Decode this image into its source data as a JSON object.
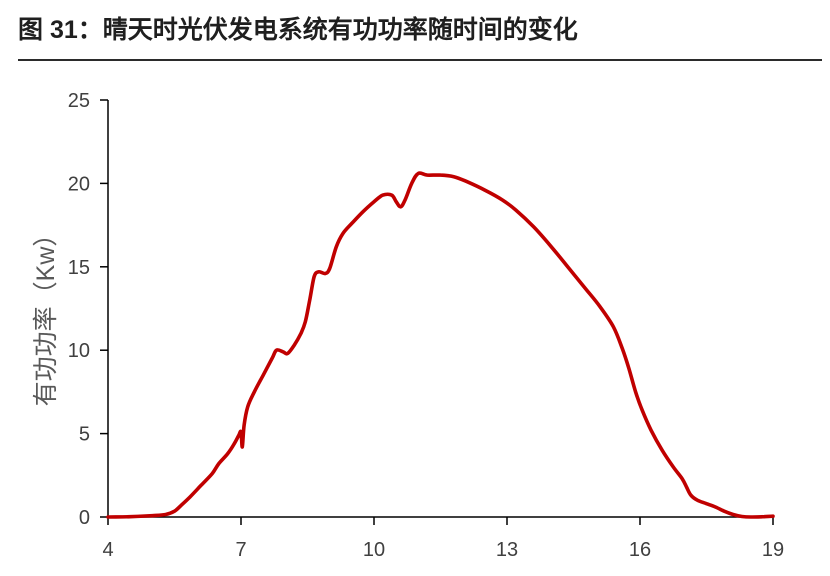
{
  "chart_data": {
    "type": "line",
    "title": "图 31：晴天时光伏发电系统有功功率随时间的变化",
    "ylabel": "有功功率（Kw）",
    "xlim": [
      4,
      19
    ],
    "ylim": [
      0,
      25
    ],
    "xticks": [
      4,
      7,
      10,
      13,
      16,
      19
    ],
    "yticks": [
      0,
      5,
      10,
      15,
      20,
      25
    ],
    "grid": false,
    "legend": "none",
    "series": [
      {
        "color": "#C00000",
        "x": [
          4.0,
          4.5,
          5.0,
          5.3,
          5.5,
          5.65,
          5.85,
          6.1,
          6.35,
          6.5,
          6.7,
          6.85,
          6.95,
          7.0,
          7.03,
          7.07,
          7.15,
          7.3,
          7.5,
          7.7,
          7.8,
          7.95,
          8.05,
          8.2,
          8.35,
          8.45,
          8.55,
          8.65,
          8.75,
          8.9,
          9.0,
          9.15,
          9.3,
          9.5,
          9.75,
          10.0,
          10.2,
          10.4,
          10.5,
          10.6,
          10.7,
          10.85,
          11.0,
          11.2,
          11.5,
          11.8,
          12.1,
          12.5,
          12.9,
          13.2,
          13.6,
          14.0,
          14.4,
          14.8,
          15.1,
          15.4,
          15.6,
          15.75,
          15.9,
          16.05,
          16.25,
          16.5,
          16.75,
          16.95,
          17.05,
          17.15,
          17.3,
          17.5,
          17.7,
          17.9,
          18.1,
          18.3,
          18.5,
          18.8,
          19.0
        ],
        "y": [
          0.0,
          0.02,
          0.08,
          0.15,
          0.35,
          0.7,
          1.2,
          1.9,
          2.6,
          3.2,
          3.8,
          4.4,
          4.9,
          5.1,
          4.2,
          5.5,
          6.6,
          7.5,
          8.5,
          9.5,
          10.0,
          9.9,
          9.8,
          10.3,
          11.0,
          11.7,
          13.0,
          14.4,
          14.7,
          14.6,
          14.9,
          16.2,
          17.0,
          17.6,
          18.3,
          18.9,
          19.3,
          19.3,
          18.9,
          18.6,
          19.0,
          20.0,
          20.6,
          20.5,
          20.5,
          20.4,
          20.1,
          19.6,
          19.0,
          18.4,
          17.4,
          16.2,
          14.9,
          13.6,
          12.6,
          11.4,
          10.1,
          8.9,
          7.5,
          6.4,
          5.2,
          4.0,
          3.0,
          2.3,
          1.8,
          1.3,
          1.0,
          0.8,
          0.6,
          0.35,
          0.15,
          0.03,
          0.0,
          0.02,
          0.05
        ]
      }
    ]
  }
}
